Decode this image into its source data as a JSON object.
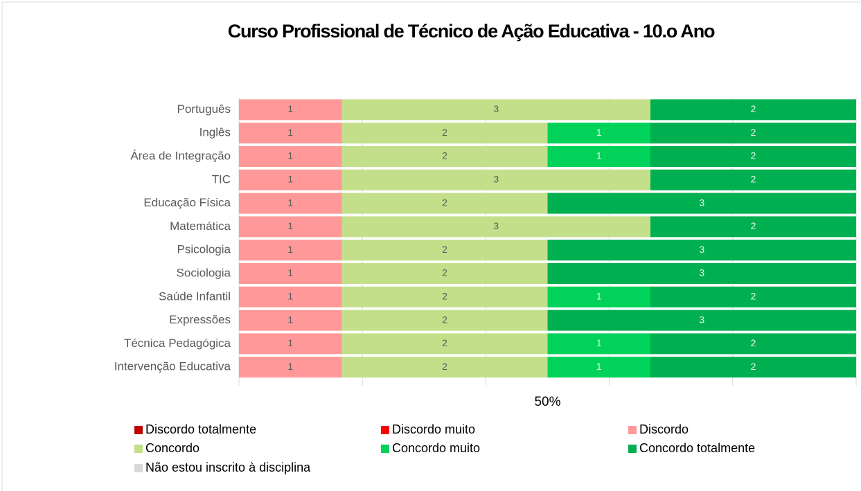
{
  "chart_data": {
    "type": "bar",
    "orientation": "horizontal",
    "stack": "percent",
    "title": "Curso Profissional de Técnico de Ação Educativa - 10.o Ano",
    "categories": [
      "Português",
      "Inglês",
      "Área de Integração",
      "TIC",
      "Educação Física",
      "Matemática",
      "Psicologia",
      "Sociologia",
      "Saúde Infantil",
      "Expressões",
      "Técnica Pedagógica",
      "Intervenção Educativa"
    ],
    "series": [
      {
        "name": "Discordo totalmente",
        "color": "#c00000",
        "values": [
          0,
          0,
          0,
          0,
          0,
          0,
          0,
          0,
          0,
          0,
          0,
          0
        ]
      },
      {
        "name": "Discordo muito",
        "color": "#ff0000",
        "values": [
          0,
          0,
          0,
          0,
          0,
          0,
          0,
          0,
          0,
          0,
          0,
          0
        ]
      },
      {
        "name": "Discordo",
        "color": "#ff9999",
        "values": [
          1,
          1,
          1,
          1,
          1,
          1,
          1,
          1,
          1,
          1,
          1,
          1
        ]
      },
      {
        "name": "Concordo",
        "color": "#c4df8a",
        "values": [
          3,
          2,
          2,
          3,
          2,
          3,
          2,
          2,
          2,
          2,
          2,
          2
        ]
      },
      {
        "name": "Concordo muito",
        "color": "#00d25a",
        "values": [
          0,
          1,
          1,
          0,
          0,
          0,
          0,
          0,
          1,
          0,
          1,
          1
        ]
      },
      {
        "name": "Concordo totalmente",
        "color": "#00b050",
        "values": [
          2,
          2,
          2,
          2,
          3,
          2,
          3,
          3,
          2,
          3,
          2,
          2
        ]
      },
      {
        "name": "Não estou inscrito à disciplina",
        "color": "#d9d9d9",
        "values": [
          0,
          0,
          0,
          0,
          0,
          0,
          0,
          0,
          0,
          0,
          0,
          0
        ]
      }
    ],
    "xlim": [
      0,
      100
    ],
    "xticks": [
      {
        "value": 50,
        "label": "50%"
      }
    ],
    "gridlines": [
      0,
      20,
      40,
      60,
      80,
      100
    ],
    "grid": true,
    "legend": "bottom"
  }
}
